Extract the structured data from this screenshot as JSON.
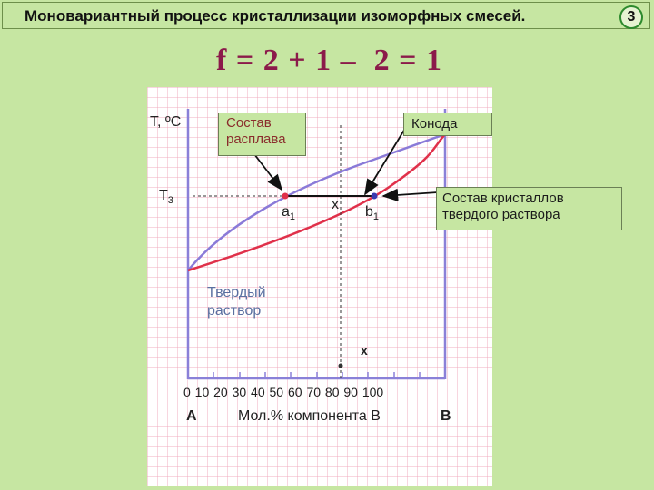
{
  "header": {
    "title": "Моновариантный процесс кристаллизации изоморфных смесей.",
    "slide_number": "3"
  },
  "formula": "f = 2 + 1 –  2 = 1",
  "diagram": {
    "y_axis_label": "T, ºC",
    "t3_label": "T",
    "t3_sub": "3",
    "point_a1": "a",
    "point_a1_sub": "1",
    "point_b1": "b",
    "point_b1_sub": "1",
    "x_mid_label": "x",
    "x_bottom_label": "x",
    "tick_labels": "0  10  20  30  40   50  60  70  80  90  100",
    "component_a": "A",
    "component_b": "B",
    "x_axis_label": "Мол.% компонента В",
    "solid_solution_line1": "Твердый",
    "solid_solution_line2": "раствор"
  },
  "callouts": {
    "melt_line1": "Состав",
    "melt_line2": "расплава",
    "konoda": "Конода",
    "crystals_line1": "Состав кристаллов",
    "crystals_line2": "твердого раствора"
  },
  "colors": {
    "liquidus": "#8a7ad8",
    "solidus": "#e0304a",
    "axis": "#8a80d8",
    "formula": "#8b1a4a",
    "background": "#c6e6a2"
  }
}
